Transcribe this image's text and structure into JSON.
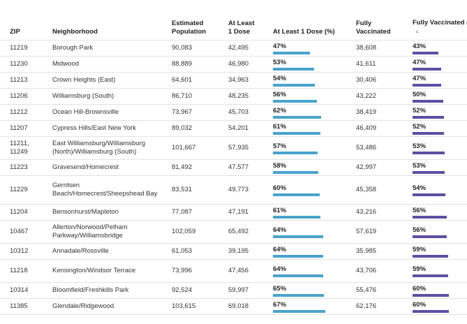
{
  "colors": {
    "dose_bar": "#4aa3cc",
    "full_bar": "#5e4fa2"
  },
  "headers": {
    "zip": "ZIP",
    "neighborhood": "Neighborhood",
    "population": "Estimated Population",
    "at_least_one": "At Least 1 Dose",
    "at_least_one_pct": "At Least 1 Dose (%)",
    "fully": "Fully Vaccinated",
    "fully_pct": "Fully Vaccinated (%)",
    "sort_icon": "sort-ascending-icon"
  },
  "rows": [
    {
      "zip": "11219",
      "neighborhood": "Borough Park",
      "population": "90,083",
      "dose": "42,495",
      "dose_pct": "47%",
      "dose_frac": 0.47,
      "full": "38,608",
      "full_pct": "43%",
      "full_frac": 0.43
    },
    {
      "zip": "11230",
      "neighborhood": "Midwood",
      "population": "88,889",
      "dose": "46,980",
      "dose_pct": "53%",
      "dose_frac": 0.53,
      "full": "41,611",
      "full_pct": "47%",
      "full_frac": 0.47
    },
    {
      "zip": "11213",
      "neighborhood": "Crown Heights (East)",
      "population": "64,601",
      "dose": "34,963",
      "dose_pct": "54%",
      "dose_frac": 0.54,
      "full": "30,406",
      "full_pct": "47%",
      "full_frac": 0.47
    },
    {
      "zip": "11206",
      "neighborhood": "Williamsburg (South)",
      "population": "86,710",
      "dose": "48,235",
      "dose_pct": "56%",
      "dose_frac": 0.56,
      "full": "43,222",
      "full_pct": "50%",
      "full_frac": 0.5
    },
    {
      "zip": "11212",
      "neighborhood": "Ocean Hill-Brownsville",
      "population": "73,967",
      "dose": "45,703",
      "dose_pct": "62%",
      "dose_frac": 0.62,
      "full": "38,419",
      "full_pct": "52%",
      "full_frac": 0.52
    },
    {
      "zip": "11207",
      "neighborhood": "Cypress Hills/East New York",
      "population": "89,032",
      "dose": "54,201",
      "dose_pct": "61%",
      "dose_frac": 0.61,
      "full": "46,409",
      "full_pct": "52%",
      "full_frac": 0.52
    },
    {
      "zip": "11211, 11249",
      "neighborhood": "East Williamsburg/Williamsburg (North)/Williamsburg (South)",
      "population": "101,667",
      "dose": "57,935",
      "dose_pct": "57%",
      "dose_frac": 0.57,
      "full": "53,486",
      "full_pct": "53%",
      "full_frac": 0.53
    },
    {
      "zip": "11223",
      "neighborhood": "Gravesend/Homecrest",
      "population": "81,492",
      "dose": "47,577",
      "dose_pct": "58%",
      "dose_frac": 0.58,
      "full": "42,997",
      "full_pct": "53%",
      "full_frac": 0.53
    },
    {
      "zip": "11229",
      "neighborhood": "Gerritsen Beach/Homecrest/Sheepshead Bay",
      "population": "83,531",
      "dose": "49,773",
      "dose_pct": "60%",
      "dose_frac": 0.6,
      "full": "45,358",
      "full_pct": "54%",
      "full_frac": 0.54
    },
    {
      "zip": "11204",
      "neighborhood": "Bensonhurst/Mapleton",
      "population": "77,087",
      "dose": "47,191",
      "dose_pct": "61%",
      "dose_frac": 0.61,
      "full": "43,216",
      "full_pct": "56%",
      "full_frac": 0.56
    },
    {
      "zip": "10467",
      "neighborhood": "Allerton/Norwood/Pelham Parkway/Williamsbridge",
      "population": "102,059",
      "dose": "65,492",
      "dose_pct": "64%",
      "dose_frac": 0.64,
      "full": "57,619",
      "full_pct": "56%",
      "full_frac": 0.56
    },
    {
      "zip": "10312",
      "neighborhood": "Annadale/Rossville",
      "population": "61,053",
      "dose": "39,195",
      "dose_pct": "64%",
      "dose_frac": 0.64,
      "full": "35,985",
      "full_pct": "59%",
      "full_frac": 0.59
    },
    {
      "zip": "11218",
      "neighborhood": "Kensington/Windsor Terrace",
      "population": "73,996",
      "dose": "47,456",
      "dose_pct": "64%",
      "dose_frac": 0.64,
      "full": "43,706",
      "full_pct": "59%",
      "full_frac": 0.59
    },
    {
      "zip": "10314",
      "neighborhood": "Bloomfield/Freshkills Park",
      "population": "92,524",
      "dose": "59,997",
      "dose_pct": "65%",
      "dose_frac": 0.65,
      "full": "55,476",
      "full_pct": "60%",
      "full_frac": 0.6
    },
    {
      "zip": "11385",
      "neighborhood": "Glendale/Ridgewood",
      "population": "103,615",
      "dose": "69,018",
      "dose_pct": "67%",
      "dose_frac": 0.67,
      "full": "62,176",
      "full_pct": "60%",
      "full_frac": 0.6
    }
  ]
}
